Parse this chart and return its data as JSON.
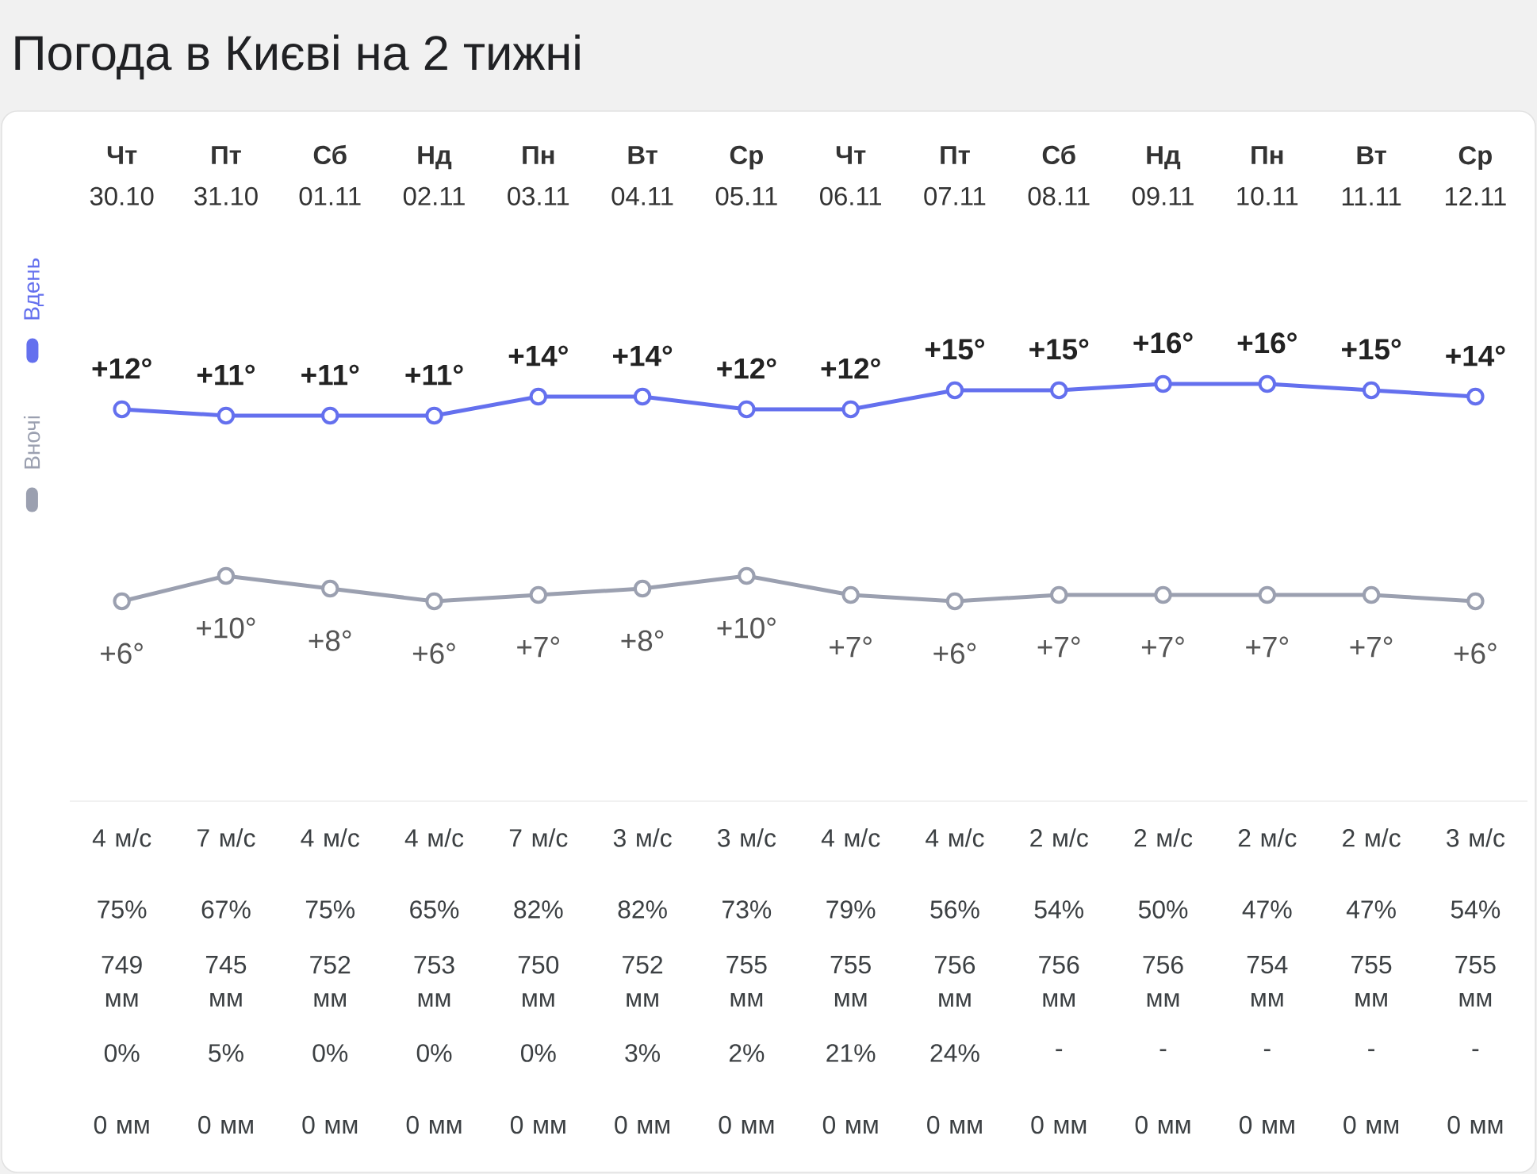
{
  "chart_data": [
    {
      "type": "line",
      "title": "Погода в Києві на 2 тижні",
      "categories": [
        "**Чт** 30.10",
        "**Пт** 31.10",
        "**Сб** 01.11",
        "**Нд** 02.11",
        "**Пн** 03.11",
        "**Вт** 04.11",
        "**Ср** 05.11",
        "**Чт** 06.11",
        "**Пт** 07.11",
        "**Сб** 08.11",
        "**Нд** 09.11",
        "**Пн** 10.11",
        "**Вт** 11.11",
        "**Ср** 12.11"
      ],
      "series": [
        {
          "name": "Вдень",
          "color": "#6470ee",
          "values": [
            12,
            11,
            11,
            11,
            14,
            14,
            12,
            12,
            15,
            15,
            16,
            16,
            15,
            14
          ],
          "value_labels": [
            "+12°",
            "+11°",
            "+11°",
            "+11°",
            "+14°",
            "+14°",
            "+12°",
            "+12°",
            "+15°",
            "+15°",
            "+16°",
            "+16°",
            "+15°",
            "+14°"
          ]
        }
      ],
      "tick_labels": "x",
      "marker": "circle",
      "legend": "left"
    },
    {
      "type": "line",
      "categories": [
        null,
        null,
        null,
        null,
        null,
        null,
        null,
        null,
        null,
        null,
        null,
        null,
        null,
        null
      ],
      "series": [
        {
          "name": "Вночі",
          "color": "#9ba0b0",
          "values": [
            6,
            10,
            8,
            6,
            7,
            8,
            10,
            7,
            6,
            7,
            7,
            7,
            7,
            6
          ],
          "value_labels": [
            "+6°",
            "+10°",
            "+8°",
            "+6°",
            "+7°",
            "+8°",
            "+10°",
            "+7°",
            "+6°",
            "+7°",
            "+7°",
            "+7°",
            "+7°",
            "+6°"
          ]
        }
      ],
      "tick_labels": false,
      "marker": "circle",
      "legend": "left"
    },
    {
      "type": "other",
      "categories": [
        null,
        null,
        null,
        null,
        null,
        null,
        null,
        null,
        null,
        null,
        null,
        null,
        null,
        null
      ],
      "annotations": [
        "4 м/с",
        "7 м/с",
        "4 м/с",
        "4 м/с",
        "7 м/с",
        "3 м/с",
        "3 м/с",
        "4 м/с",
        "4 м/с",
        "2 м/с",
        "2 м/с",
        "2 м/с",
        "2 м/с",
        "3 м/с",
        "75%",
        "67%",
        "75%",
        "65%",
        "82%",
        "82%",
        "73%",
        "79%",
        "56%",
        "54%",
        "50%",
        "47%",
        "47%",
        "54%",
        "749 мм",
        "745 мм",
        "752 мм",
        "753 мм",
        "750 мм",
        "752 мм",
        "755 мм",
        "755 мм",
        "756 мм",
        "756 мм",
        "756 мм",
        "754 мм",
        "755 мм",
        "755 мм",
        "0%",
        "5%",
        "0%",
        "0%",
        "0%",
        "3%",
        "2%",
        "21%",
        "24%",
        "-",
        "-",
        "-",
        "-",
        "-",
        "0 мм",
        "0 мм",
        "0 мм",
        "0 мм",
        "0 мм",
        "0 мм",
        "0 мм",
        "0 мм",
        "0 мм",
        "0 мм",
        "0 мм",
        "0 мм",
        "0 мм",
        "0 мм"
      ]
    }
  ]
}
